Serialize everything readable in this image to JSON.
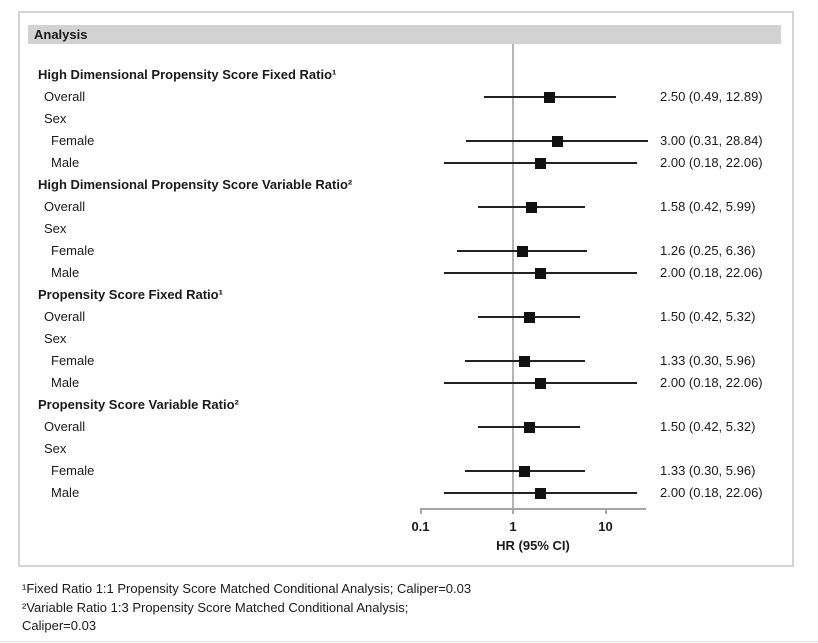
{
  "chart_data": {
    "type": "forest",
    "title": "Analysis",
    "xlabel": "HR (95% CI)",
    "x_scale": "log10",
    "x_ticks": [
      "0.1",
      "1",
      "10"
    ],
    "x_tick_values": [
      0.1,
      1,
      10
    ],
    "x_range": [
      0.1,
      27.4
    ],
    "reference_line": 1.0,
    "grid": false,
    "legend_position": "none",
    "rows": [
      {
        "label": "High Dimensional Propensity Score Fixed Ratio¹",
        "indent": 0,
        "bold": true
      },
      {
        "label": "Overall",
        "indent": 1,
        "hr": 2.5,
        "ci_low": 0.49,
        "ci_high": 12.89,
        "value_text": "2.50 (0.49, 12.89)"
      },
      {
        "label": "Sex",
        "indent": 1
      },
      {
        "label": "Female",
        "indent": 2,
        "hr": 3.0,
        "ci_low": 0.31,
        "ci_high": 28.84,
        "value_text": "3.00 (0.31, 28.84)"
      },
      {
        "label": "Male",
        "indent": 2,
        "hr": 2.0,
        "ci_low": 0.18,
        "ci_high": 22.06,
        "value_text": "2.00 (0.18, 22.06)"
      },
      {
        "label": "High Dimensional Propensity Score Variable Ratio²",
        "indent": 0,
        "bold": true
      },
      {
        "label": "Overall",
        "indent": 1,
        "hr": 1.58,
        "ci_low": 0.42,
        "ci_high": 5.99,
        "value_text": "1.58 (0.42, 5.99)"
      },
      {
        "label": "Sex",
        "indent": 1
      },
      {
        "label": "Female",
        "indent": 2,
        "hr": 1.26,
        "ci_low": 0.25,
        "ci_high": 6.36,
        "value_text": "1.26 (0.25, 6.36)"
      },
      {
        "label": "Male",
        "indent": 2,
        "hr": 2.0,
        "ci_low": 0.18,
        "ci_high": 22.06,
        "value_text": "2.00 (0.18, 22.06)"
      },
      {
        "label": "Propensity Score Fixed Ratio¹",
        "indent": 0,
        "bold": true
      },
      {
        "label": "Overall",
        "indent": 1,
        "hr": 1.5,
        "ci_low": 0.42,
        "ci_high": 5.32,
        "value_text": "1.50 (0.42, 5.32)"
      },
      {
        "label": "Sex",
        "indent": 1
      },
      {
        "label": "Female",
        "indent": 2,
        "hr": 1.33,
        "ci_low": 0.3,
        "ci_high": 5.96,
        "value_text": "1.33 (0.30, 5.96)"
      },
      {
        "label": "Male",
        "indent": 2,
        "hr": 2.0,
        "ci_low": 0.18,
        "ci_high": 22.06,
        "value_text": "2.00 (0.18, 22.06)"
      },
      {
        "label": "Propensity Score Variable Ratio²",
        "indent": 0,
        "bold": true
      },
      {
        "label": "Overall",
        "indent": 1,
        "hr": 1.5,
        "ci_low": 0.42,
        "ci_high": 5.32,
        "value_text": "1.50 (0.42, 5.32)"
      },
      {
        "label": "Sex",
        "indent": 1
      },
      {
        "label": "Female",
        "indent": 2,
        "hr": 1.33,
        "ci_low": 0.3,
        "ci_high": 5.96,
        "value_text": "1.33 (0.30, 5.96)"
      },
      {
        "label": "Male",
        "indent": 2,
        "hr": 2.0,
        "ci_low": 0.18,
        "ci_high": 22.06,
        "value_text": "2.00 (0.18, 22.06)"
      }
    ]
  },
  "footnotes": [
    "¹Fixed Ratio 1:1 Propensity Score Matched Conditional Analysis; Caliper=0.03",
    "²Variable Ratio 1:3 Propensity Score Matched Conditional Analysis;",
    "Caliper=0.03"
  ],
  "colors": {
    "header_bar": "#d2d2d2",
    "figure_border": "#d4d4d4",
    "axis": "#a6a6a6",
    "reference_line": "#b5b5b5",
    "marker": "#111111",
    "text": "#1a1a1a"
  }
}
